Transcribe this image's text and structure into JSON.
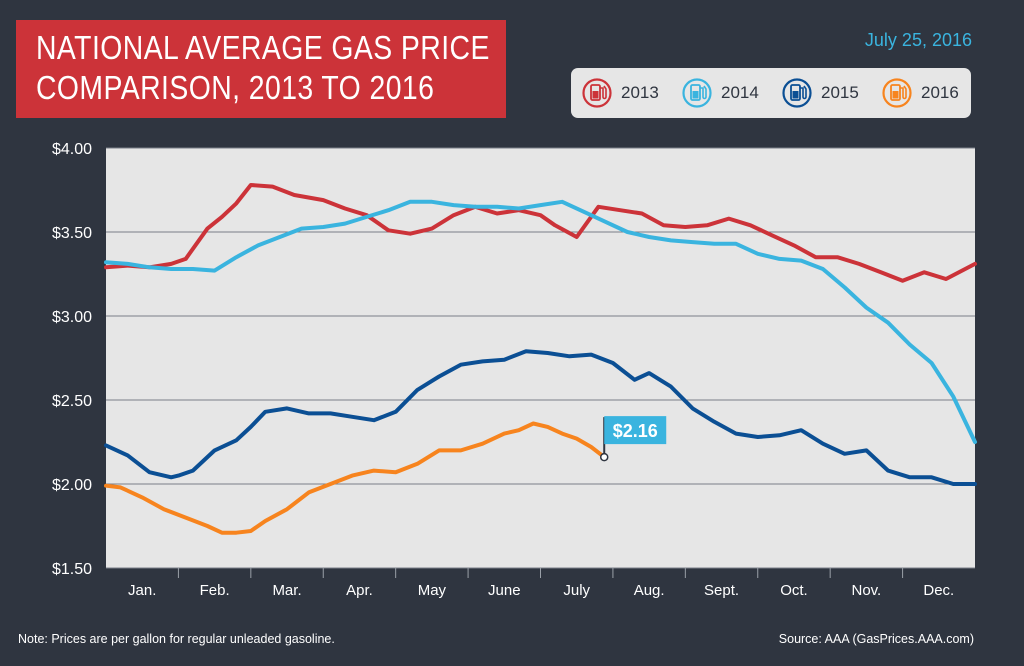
{
  "header": {
    "title_line1": "NATIONAL AVERAGE GAS PRICE",
    "title_line2": "COMPARISON, 2013 TO 2016",
    "date": "July 25, 2016"
  },
  "legend": [
    {
      "label": "2013",
      "color": "#cc3339",
      "icon": "gas-pump-icon"
    },
    {
      "label": "2014",
      "color": "#3ab4df",
      "icon": "gas-pump-icon"
    },
    {
      "label": "2015",
      "color": "#0b4f94",
      "icon": "gas-pump-icon"
    },
    {
      "label": "2016",
      "color": "#f7841e",
      "icon": "gas-pump-icon"
    }
  ],
  "footer": {
    "note": "Note: Prices are per gallon for regular unleaded gasoline.",
    "source": "Source: AAA (GasPrices.AAA.com)"
  },
  "chart_data": {
    "type": "line",
    "title": "NATIONAL AVERAGE GAS PRICE COMPARISON, 2013 TO 2016",
    "ylim": [
      1.5,
      4.0
    ],
    "xlim": [
      0,
      12
    ],
    "yticks": [
      1.5,
      2.0,
      2.5,
      3.0,
      3.5,
      4.0
    ],
    "ytick_labels": [
      "$1.50",
      "$2.00",
      "$2.50",
      "$3.00",
      "$3.50",
      "$4.00"
    ],
    "categories": [
      "Jan.",
      "Feb.",
      "Mar.",
      "Apr.",
      "May",
      "June",
      "July",
      "Aug.",
      "Sept.",
      "Oct.",
      "Nov.",
      "Dec."
    ],
    "grid": true,
    "legend_position": "top-right",
    "callout": {
      "label": "$2.16",
      "series": "2016",
      "x": 6.88,
      "y": 2.16
    },
    "series": [
      {
        "name": "2013",
        "color": "#cc3339",
        "x": [
          0,
          0.3,
          0.6,
          0.9,
          1.1,
          1.4,
          1.6,
          1.8,
          2.0,
          2.3,
          2.6,
          3.0,
          3.3,
          3.6,
          3.9,
          4.2,
          4.5,
          4.8,
          5.1,
          5.4,
          5.7,
          6.0,
          6.2,
          6.5,
          6.8,
          7.1,
          7.4,
          7.7,
          8.0,
          8.3,
          8.6,
          8.9,
          9.2,
          9.5,
          9.8,
          10.1,
          10.4,
          10.7,
          11.0,
          11.3,
          11.6,
          12.0
        ],
        "y": [
          3.29,
          3.3,
          3.29,
          3.31,
          3.34,
          3.52,
          3.59,
          3.67,
          3.78,
          3.77,
          3.72,
          3.69,
          3.64,
          3.6,
          3.51,
          3.49,
          3.52,
          3.6,
          3.65,
          3.61,
          3.63,
          3.6,
          3.54,
          3.47,
          3.65,
          3.63,
          3.61,
          3.54,
          3.53,
          3.54,
          3.58,
          3.54,
          3.48,
          3.42,
          3.35,
          3.35,
          3.31,
          3.26,
          3.21,
          3.26,
          3.22,
          3.31
        ]
      },
      {
        "name": "2014",
        "color": "#3ab4df",
        "x": [
          0,
          0.3,
          0.6,
          0.9,
          1.2,
          1.5,
          1.8,
          2.1,
          2.4,
          2.7,
          3.0,
          3.3,
          3.6,
          3.9,
          4.2,
          4.5,
          4.8,
          5.1,
          5.4,
          5.7,
          6.0,
          6.3,
          6.6,
          6.9,
          7.2,
          7.5,
          7.8,
          8.1,
          8.4,
          8.7,
          9.0,
          9.3,
          9.6,
          9.9,
          10.2,
          10.5,
          10.8,
          11.1,
          11.4,
          11.7,
          12.0
        ],
        "y": [
          3.32,
          3.31,
          3.29,
          3.28,
          3.28,
          3.27,
          3.35,
          3.42,
          3.47,
          3.52,
          3.53,
          3.55,
          3.59,
          3.63,
          3.68,
          3.68,
          3.66,
          3.65,
          3.65,
          3.64,
          3.66,
          3.68,
          3.62,
          3.56,
          3.5,
          3.47,
          3.45,
          3.44,
          3.43,
          3.43,
          3.37,
          3.34,
          3.33,
          3.28,
          3.17,
          3.05,
          2.96,
          2.83,
          2.72,
          2.52,
          2.25
        ]
      },
      {
        "name": "2015",
        "color": "#0b4f94",
        "x": [
          0,
          0.3,
          0.6,
          0.9,
          1.0,
          1.2,
          1.5,
          1.8,
          2.0,
          2.2,
          2.5,
          2.8,
          3.1,
          3.4,
          3.7,
          4.0,
          4.3,
          4.6,
          4.9,
          5.2,
          5.5,
          5.8,
          6.1,
          6.4,
          6.7,
          7.0,
          7.3,
          7.5,
          7.8,
          8.1,
          8.4,
          8.7,
          9.0,
          9.3,
          9.6,
          9.9,
          10.2,
          10.5,
          10.8,
          11.1,
          11.4,
          11.7,
          12.0
        ],
        "y": [
          2.23,
          2.17,
          2.07,
          2.04,
          2.05,
          2.08,
          2.2,
          2.26,
          2.34,
          2.43,
          2.45,
          2.42,
          2.42,
          2.4,
          2.38,
          2.43,
          2.56,
          2.64,
          2.71,
          2.73,
          2.74,
          2.79,
          2.78,
          2.76,
          2.77,
          2.72,
          2.62,
          2.66,
          2.58,
          2.45,
          2.37,
          2.3,
          2.28,
          2.29,
          2.32,
          2.24,
          2.18,
          2.2,
          2.08,
          2.04,
          2.04,
          2.0,
          2.0
        ]
      },
      {
        "name": "2016",
        "color": "#f7841e",
        "x": [
          0,
          0.2,
          0.5,
          0.8,
          1.1,
          1.4,
          1.6,
          1.8,
          2.0,
          2.2,
          2.5,
          2.8,
          3.1,
          3.4,
          3.7,
          4.0,
          4.3,
          4.6,
          4.9,
          5.2,
          5.5,
          5.7,
          5.9,
          6.1,
          6.3,
          6.5,
          6.7,
          6.88
        ],
        "y": [
          1.99,
          1.98,
          1.92,
          1.85,
          1.8,
          1.75,
          1.71,
          1.71,
          1.72,
          1.78,
          1.85,
          1.95,
          2.0,
          2.05,
          2.08,
          2.07,
          2.12,
          2.2,
          2.2,
          2.24,
          2.3,
          2.32,
          2.36,
          2.34,
          2.3,
          2.27,
          2.22,
          2.16
        ]
      }
    ]
  }
}
